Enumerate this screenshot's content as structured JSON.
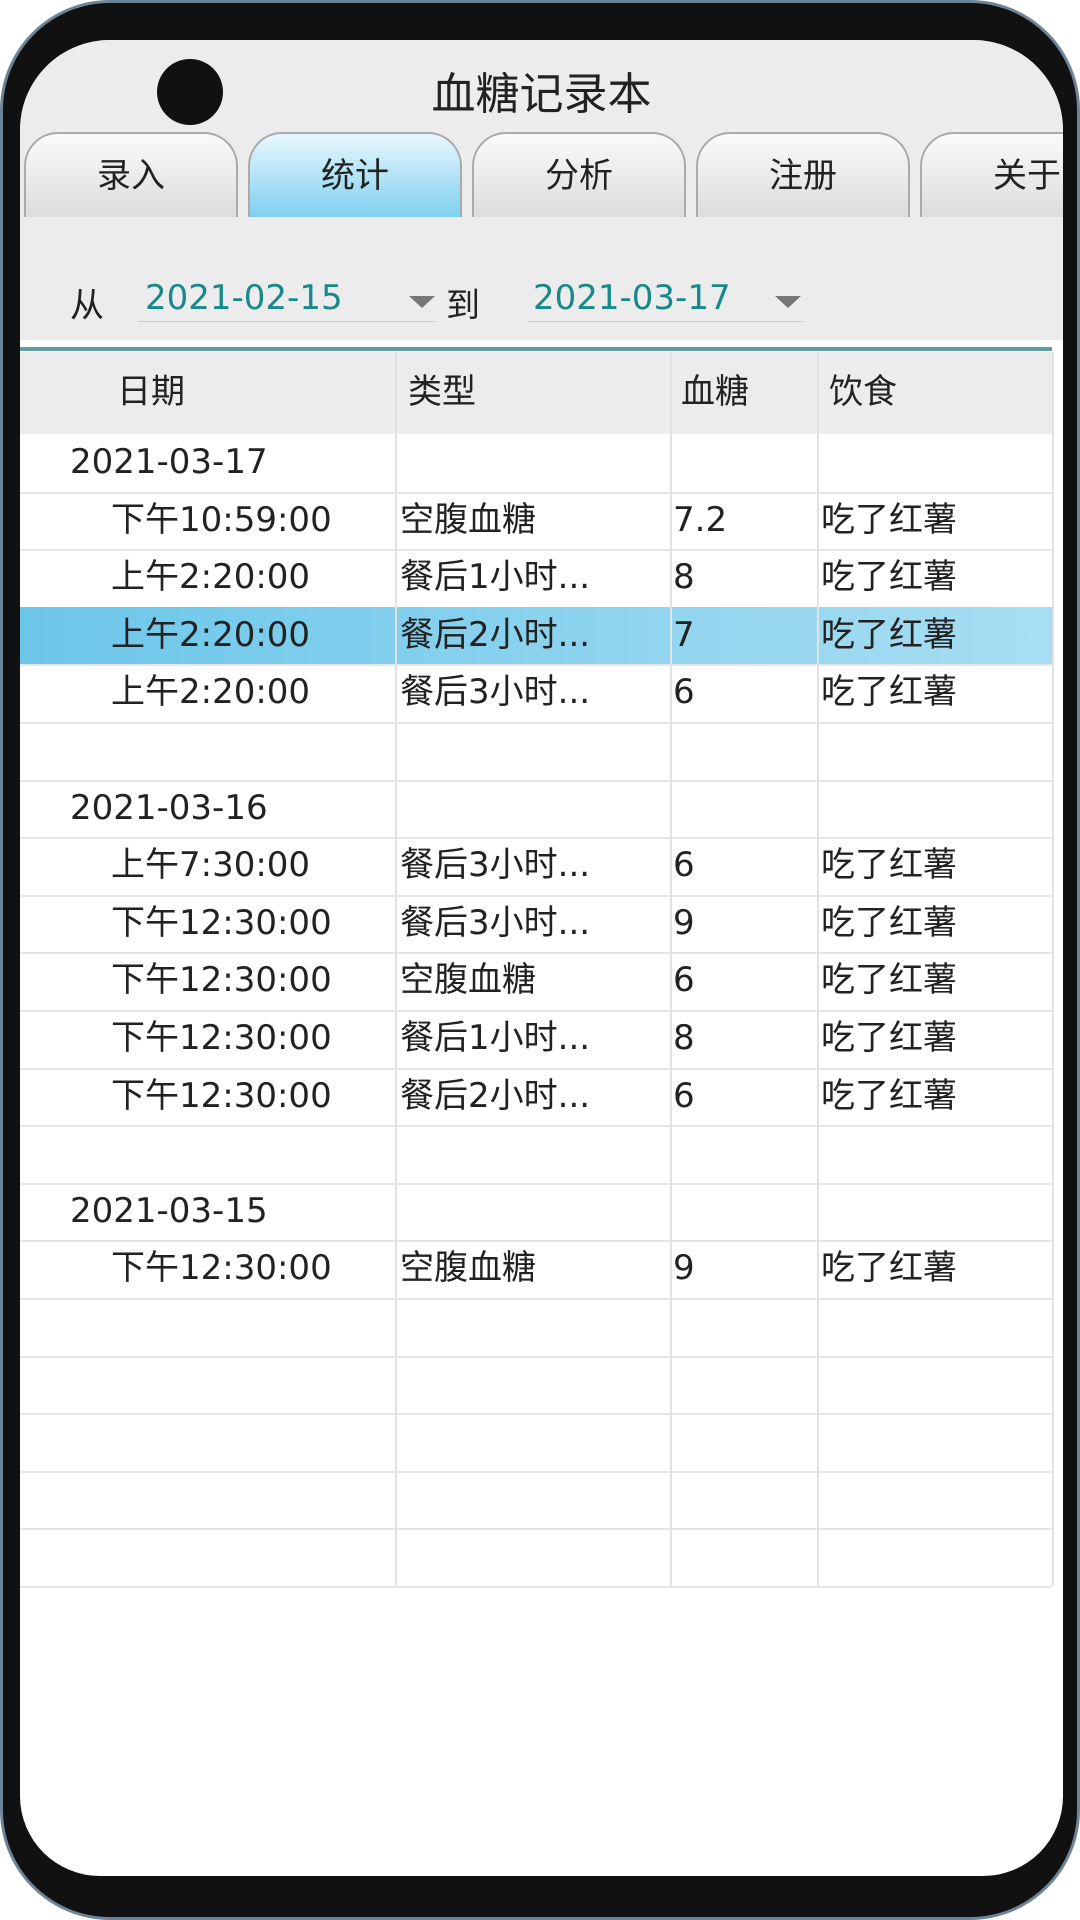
{
  "header": {
    "title": "血糖记录本"
  },
  "tabs": [
    "录入",
    "统计",
    "分析",
    "注册",
    "关于"
  ],
  "filter": {
    "from_label": "从",
    "from_date": "2021-02-15",
    "to_label": "到",
    "to_date": "2021-03-17"
  },
  "table": {
    "columns": [
      "日期",
      "类型",
      "血糖",
      "饮食"
    ],
    "groups": [
      {
        "date": "2021-03-17",
        "rows": [
          [
            "下午10:59:00",
            "空腹血糖",
            "7.2",
            "吃了红薯"
          ],
          [
            "上午2:20:00",
            "餐后1小时...",
            "8",
            "吃了红薯"
          ],
          [
            "上午2:20:00",
            "餐后2小时...",
            "7",
            "吃了红薯"
          ],
          [
            "上午2:20:00",
            "餐后3小时...",
            "6",
            "吃了红薯"
          ]
        ]
      },
      {
        "date": "2021-03-16",
        "rows": [
          [
            "上午7:30:00",
            "餐后3小时...",
            "6",
            "吃了红薯"
          ],
          [
            "下午12:30:00",
            "餐后3小时...",
            "9",
            "吃了红薯"
          ],
          [
            "下午12:30:00",
            "空腹血糖",
            "6",
            "吃了红薯"
          ],
          [
            "下午12:30:00",
            "餐后1小时...",
            "8",
            "吃了红薯"
          ],
          [
            "下午12:30:00",
            "餐后2小时...",
            "6",
            "吃了红薯"
          ]
        ]
      },
      {
        "date": "2021-03-15",
        "rows": [
          [
            "下午12:30:00",
            "空腹血糖",
            "9",
            "吃了红薯"
          ]
        ]
      }
    ]
  }
}
